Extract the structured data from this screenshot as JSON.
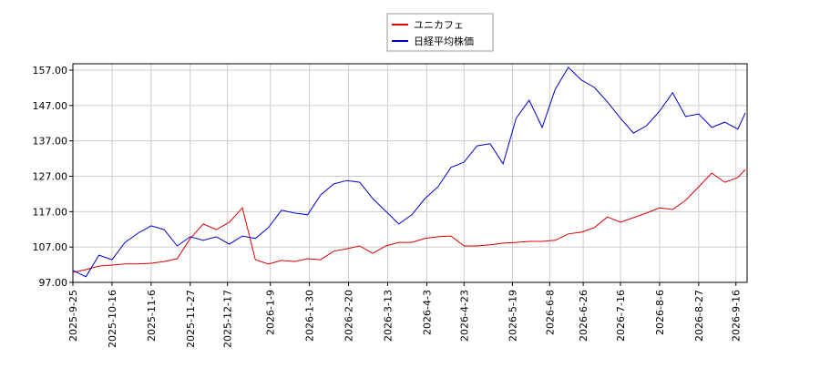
{
  "chart_data": {
    "type": "line",
    "x": [
      "2025-9-25",
      "2025-10-2",
      "2025-10-9",
      "2025-10-16",
      "2025-10-23",
      "2025-10-30",
      "2025-11-6",
      "2025-11-13",
      "2025-11-20",
      "2025-11-27",
      "2025-12-4",
      "2025-12-11",
      "2025-12-18",
      "2025-12-25",
      "2026-1-1",
      "2026-1-8",
      "2026-1-15",
      "2026-1-22",
      "2026-1-29",
      "2026-2-5",
      "2026-2-12",
      "2026-2-19",
      "2026-2-26",
      "2026-3-5",
      "2026-3-12",
      "2026-3-19",
      "2026-3-26",
      "2026-4-2",
      "2026-4-9",
      "2026-4-16",
      "2026-4-23",
      "2026-4-30",
      "2026-5-7",
      "2026-5-14",
      "2026-5-21",
      "2026-5-28",
      "2026-6-4",
      "2026-6-11",
      "2026-6-18",
      "2026-6-25",
      "2026-7-2",
      "2026-7-9",
      "2026-7-16",
      "2026-7-23",
      "2026-7-30",
      "2026-8-6",
      "2026-8-13",
      "2026-8-20",
      "2026-8-27",
      "2026-9-3",
      "2026-9-10",
      "2026-9-17",
      "2026-9-21"
    ],
    "series": [
      {
        "name": "ユニカフェ",
        "color": "#dd0000",
        "values": [
          99.8,
          100.6,
          101.6,
          101.9,
          102.2,
          102.2,
          102.4,
          102.9,
          103.7,
          109.4,
          113.5,
          111.9,
          114.0,
          118.1,
          103.4,
          102.2,
          103.2,
          102.9,
          103.7,
          103.4,
          105.8,
          106.5,
          107.3,
          105.2,
          107.3,
          108.3,
          108.3,
          109.4,
          109.9,
          110.1,
          107.3,
          107.3,
          107.6,
          108.1,
          108.3,
          108.6,
          108.6,
          108.9,
          110.7,
          111.2,
          112.5,
          115.5,
          114.0,
          115.3,
          116.6,
          118.1,
          117.6,
          120.2,
          124.0,
          127.9,
          125.3,
          126.6,
          128.9
        ]
      },
      {
        "name": "日経平均株価",
        "color": "#0000cc",
        "values": [
          100.4,
          98.6,
          104.7,
          103.4,
          108.3,
          110.9,
          113.0,
          111.9,
          107.3,
          109.9,
          108.9,
          109.9,
          107.8,
          110.1,
          109.4,
          112.5,
          117.4,
          116.6,
          116.1,
          121.7,
          124.8,
          125.8,
          125.3,
          120.7,
          117.1,
          113.5,
          116.1,
          120.7,
          124.0,
          129.5,
          131.0,
          135.6,
          136.2,
          130.5,
          143.4,
          148.5,
          140.8,
          151.6,
          157.8,
          154.2,
          152.1,
          148.0,
          143.4,
          139.2,
          141.3,
          145.4,
          150.6,
          143.9,
          144.6,
          140.8,
          142.3,
          140.3,
          144.9
        ]
      }
    ],
    "xlim": [
      "2025-9-25",
      "2026-9-22"
    ],
    "xticks": [
      "2025-9-25",
      "2025-10-16",
      "2025-11-6",
      "2025-11-27",
      "2025-12-17",
      "2026-1-9",
      "2026-1-30",
      "2026-2-20",
      "2026-3-13",
      "2026-4-3",
      "2026-4-23",
      "2026-5-19",
      "2026-6-8",
      "2026-6-26",
      "2026-7-16",
      "2026-8-6",
      "2026-8-27",
      "2026-9-16"
    ],
    "ylim": [
      97,
      158.8
    ],
    "yticks": [
      {
        "value": 97,
        "label": "97.00"
      },
      {
        "value": 107,
        "label": "107.00"
      },
      {
        "value": 117,
        "label": "117.00"
      },
      {
        "value": 127,
        "label": "127.00"
      },
      {
        "value": 137,
        "label": "137.00"
      },
      {
        "value": 147,
        "label": "147.00"
      },
      {
        "value": 157,
        "label": "157.00"
      }
    ],
    "grid": true
  }
}
